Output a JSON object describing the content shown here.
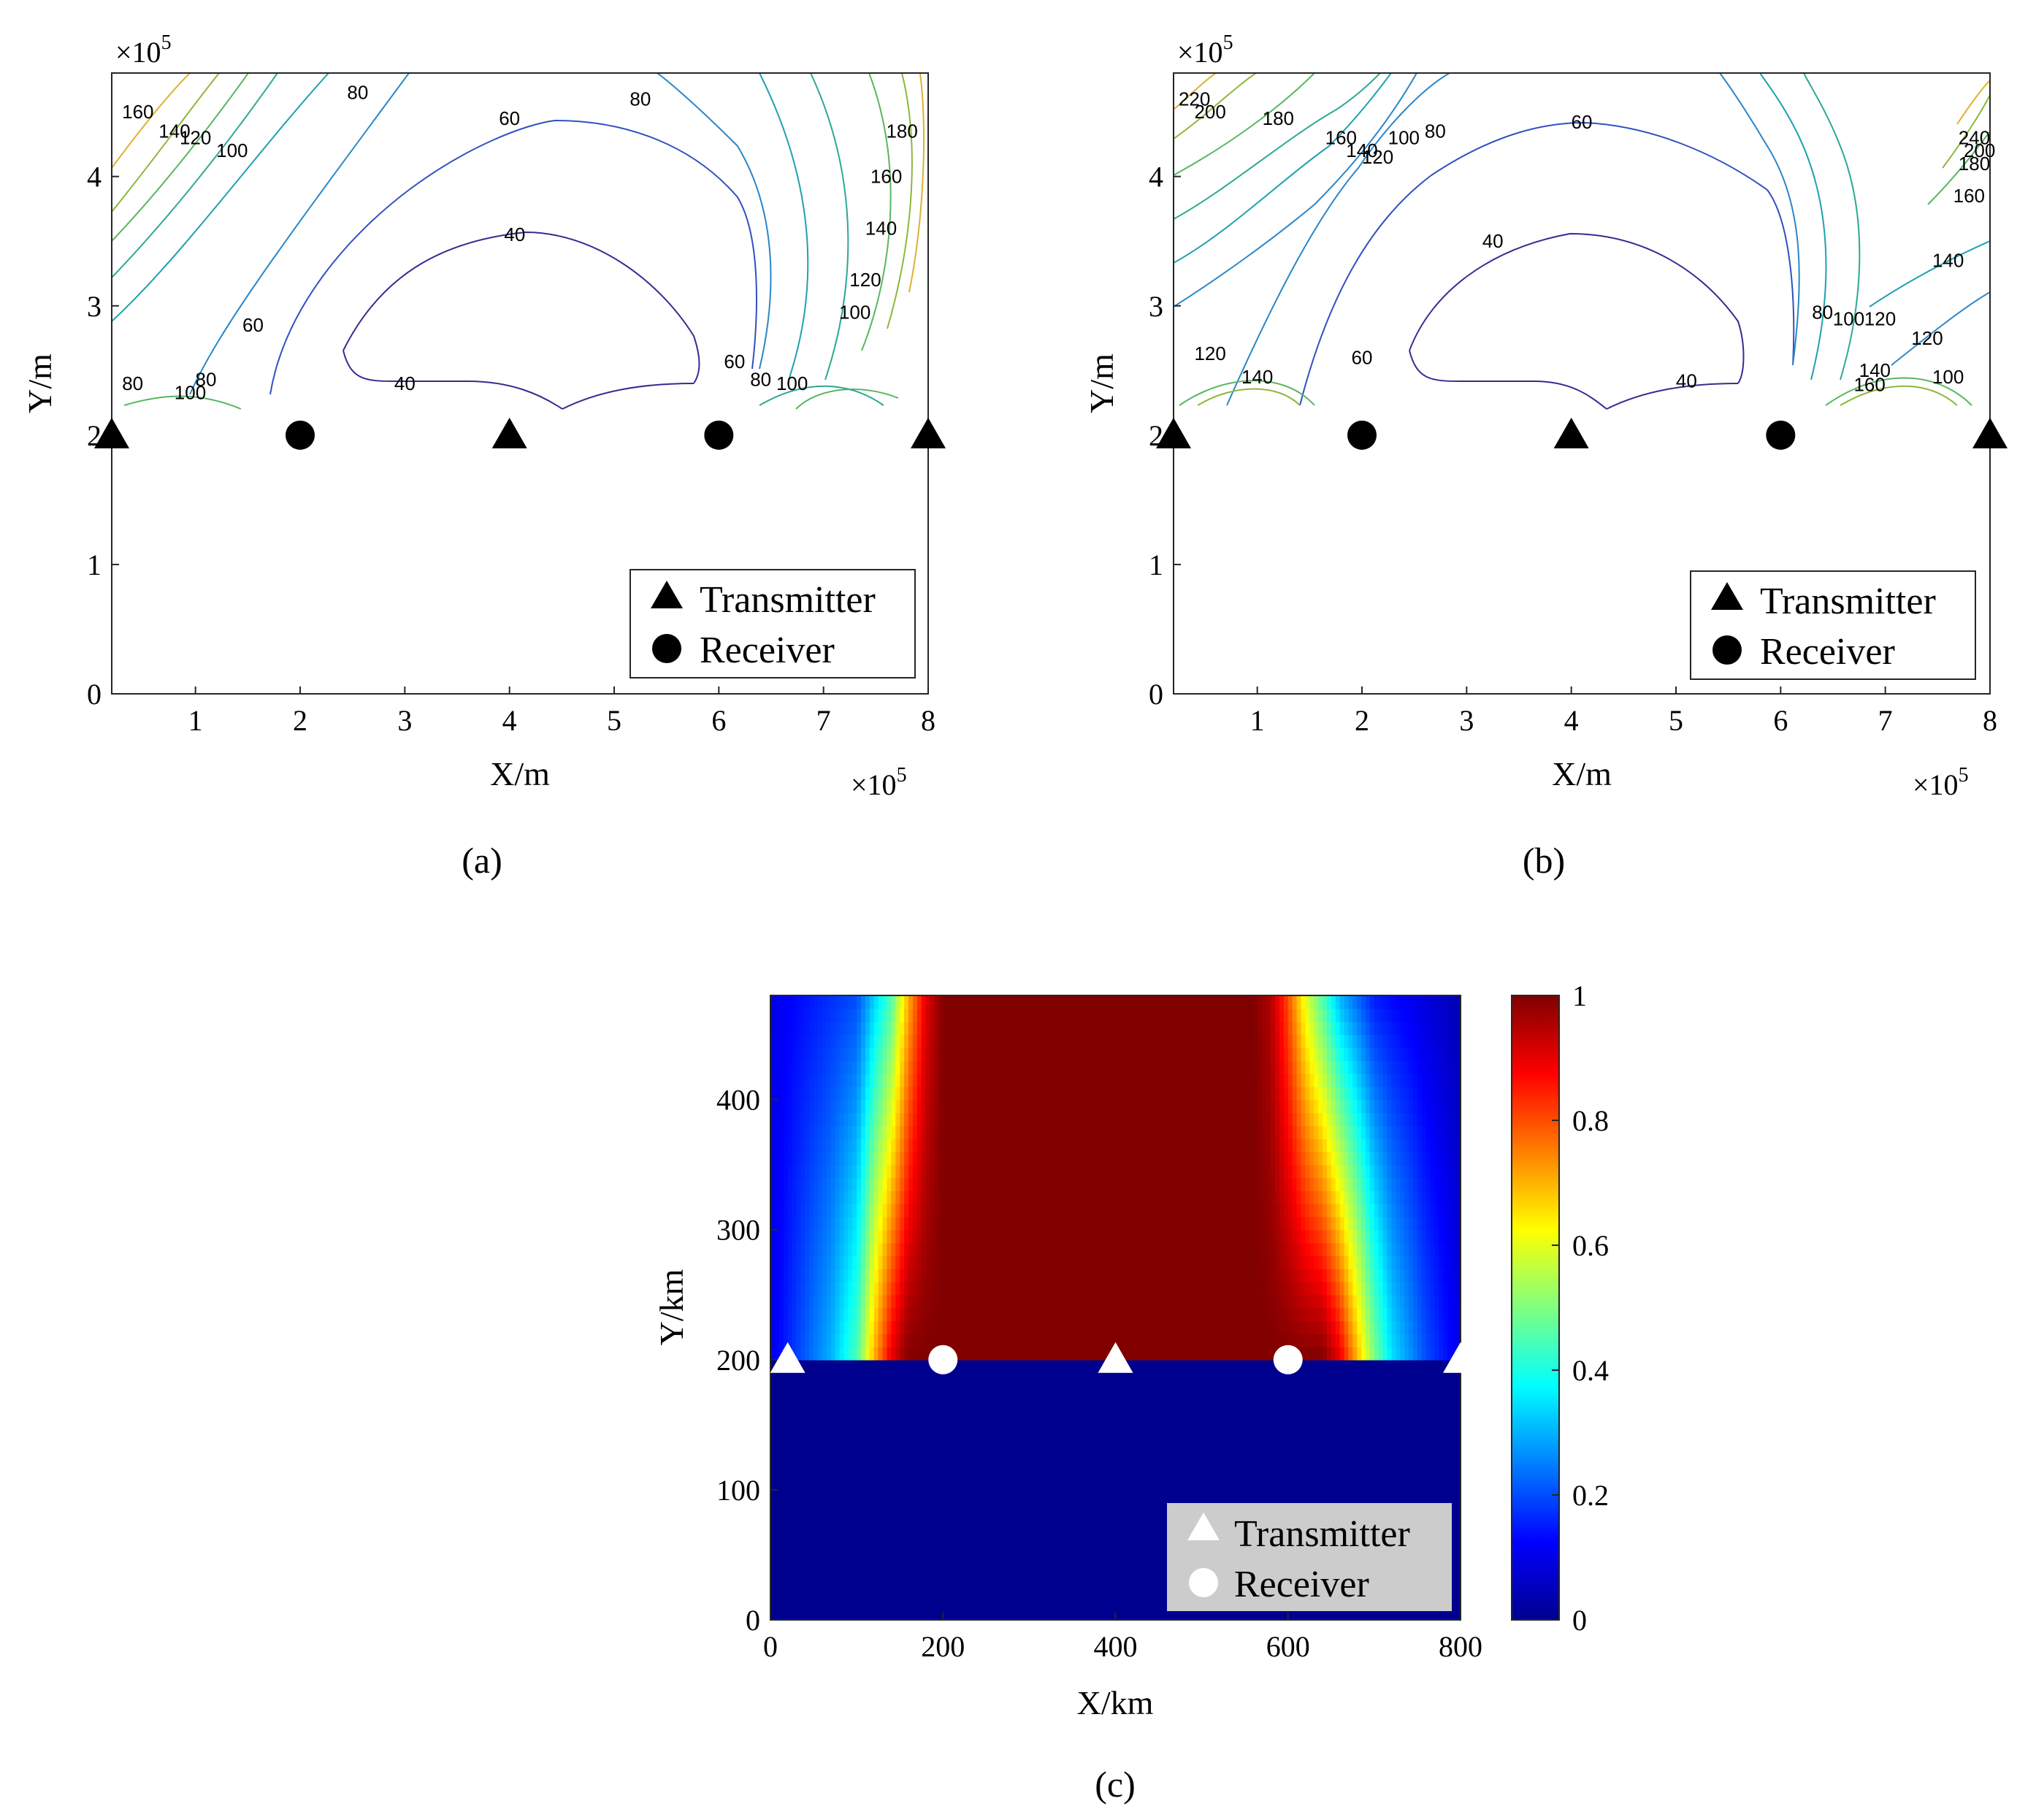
{
  "panels": [
    {
      "label": "(a)",
      "xlabel": "X/m",
      "ylabel": "Y/m",
      "x_exponent": "×10",
      "y_exponent": "×10",
      "exponent_power": "5",
      "xticks": [
        "1",
        "2",
        "3",
        "4",
        "5",
        "6",
        "7",
        "8"
      ],
      "yticks": [
        "0",
        "1",
        "2",
        "3",
        "4"
      ],
      "legend": [
        "Transmitter",
        "Receiver"
      ]
    },
    {
      "label": "(b)",
      "xlabel": "X/m",
      "ylabel": "Y/m",
      "x_exponent": "×10",
      "y_exponent": "×10",
      "exponent_power": "5",
      "xticks": [
        "1",
        "2",
        "3",
        "4",
        "5",
        "6",
        "7",
        "8"
      ],
      "yticks": [
        "0",
        "1",
        "2",
        "3",
        "4"
      ],
      "legend": [
        "Transmitter",
        "Receiver"
      ]
    },
    {
      "label": "(c)",
      "xlabel": "X/km",
      "ylabel": "Y/km",
      "xticks": [
        "0",
        "200",
        "400",
        "600",
        "800"
      ],
      "yticks": [
        "0",
        "100",
        "200",
        "300",
        "400"
      ],
      "colorbar_ticks": [
        "0",
        "0.2",
        "0.4",
        "0.6",
        "0.8",
        "1"
      ],
      "legend": [
        "Transmitter",
        "Receiver"
      ]
    }
  ],
  "chart_data": [
    {
      "type": "contour",
      "panel": "a",
      "xlim": [
        20000,
        800000
      ],
      "ylim": [
        0,
        480000
      ],
      "contour_labels": [
        {
          "text": "160",
          "x": 45000,
          "y": 445000
        },
        {
          "text": "140",
          "x": 80000,
          "y": 430000
        },
        {
          "text": "120",
          "x": 100000,
          "y": 425000
        },
        {
          "text": "100",
          "x": 135000,
          "y": 415000
        },
        {
          "text": "80",
          "x": 255000,
          "y": 460000
        },
        {
          "text": "60",
          "x": 400000,
          "y": 440000
        },
        {
          "text": "80",
          "x": 525000,
          "y": 455000
        },
        {
          "text": "40",
          "x": 405000,
          "y": 350000
        },
        {
          "text": "60",
          "x": 155000,
          "y": 280000
        },
        {
          "text": "40",
          "x": 300000,
          "y": 235000
        },
        {
          "text": "80",
          "x": 110000,
          "y": 238000
        },
        {
          "text": "80",
          "x": 40000,
          "y": 235000
        },
        {
          "text": "100",
          "x": 95000,
          "y": 228000
        },
        {
          "text": "60",
          "x": 615000,
          "y": 252000
        },
        {
          "text": "80",
          "x": 640000,
          "y": 238000
        },
        {
          "text": "100",
          "x": 670000,
          "y": 235000
        },
        {
          "text": "180",
          "x": 775000,
          "y": 430000
        },
        {
          "text": "160",
          "x": 760000,
          "y": 395000
        },
        {
          "text": "140",
          "x": 755000,
          "y": 355000
        },
        {
          "text": "120",
          "x": 740000,
          "y": 315000
        },
        {
          "text": "100",
          "x": 730000,
          "y": 290000
        }
      ],
      "transmitters": [
        [
          20000,
          200000
        ],
        [
          400000,
          200000
        ],
        [
          800000,
          200000
        ]
      ],
      "receivers": [
        [
          200000,
          200000
        ],
        [
          600000,
          200000
        ]
      ]
    },
    {
      "type": "contour",
      "panel": "b",
      "xlim": [
        20000,
        800000
      ],
      "ylim": [
        0,
        480000
      ],
      "contour_labels": [
        {
          "text": "220",
          "x": 40000,
          "y": 455000
        },
        {
          "text": "200",
          "x": 55000,
          "y": 445000
        },
        {
          "text": "180",
          "x": 120000,
          "y": 440000
        },
        {
          "text": "160",
          "x": 180000,
          "y": 425000
        },
        {
          "text": "140",
          "x": 200000,
          "y": 415000
        },
        {
          "text": "120",
          "x": 215000,
          "y": 410000
        },
        {
          "text": "100",
          "x": 240000,
          "y": 425000
        },
        {
          "text": "80",
          "x": 270000,
          "y": 430000
        },
        {
          "text": "60",
          "x": 410000,
          "y": 437000
        },
        {
          "text": "40",
          "x": 325000,
          "y": 345000
        },
        {
          "text": "60",
          "x": 200000,
          "y": 255000
        },
        {
          "text": "40",
          "x": 510000,
          "y": 237000
        },
        {
          "text": "120",
          "x": 55000,
          "y": 258000
        },
        {
          "text": "140",
          "x": 100000,
          "y": 240000
        },
        {
          "text": "80",
          "x": 640000,
          "y": 290000
        },
        {
          "text": "100",
          "x": 665000,
          "y": 285000
        },
        {
          "text": "120",
          "x": 695000,
          "y": 285000
        },
        {
          "text": "140",
          "x": 690000,
          "y": 245000
        },
        {
          "text": "160",
          "x": 685000,
          "y": 234000
        },
        {
          "text": "100",
          "x": 760000,
          "y": 240000
        },
        {
          "text": "120",
          "x": 740000,
          "y": 270000
        },
        {
          "text": "140",
          "x": 760000,
          "y": 330000
        },
        {
          "text": "160",
          "x": 780000,
          "y": 380000
        },
        {
          "text": "180",
          "x": 785000,
          "y": 405000
        },
        {
          "text": "200",
          "x": 790000,
          "y": 415000
        },
        {
          "text": "240",
          "x": 785000,
          "y": 425000
        }
      ],
      "transmitters": [
        [
          20000,
          200000
        ],
        [
          400000,
          200000
        ],
        [
          800000,
          200000
        ]
      ],
      "receivers": [
        [
          200000,
          200000
        ],
        [
          600000,
          200000
        ]
      ]
    },
    {
      "type": "heatmap",
      "panel": "c",
      "xlim": [
        0,
        800
      ],
      "ylim": [
        0,
        480
      ],
      "clim": [
        0,
        1
      ],
      "colormap": "jet",
      "values_description_rows": [
        {
          "y": 480,
          "x": [
            0,
            100,
            140,
            160,
            180,
            200,
            230,
            260,
            560,
            580,
            600,
            620,
            640,
            660,
            700,
            800
          ],
          "v": [
            0.1,
            0.2,
            0.45,
            0.7,
            0.9,
            1,
            1,
            1,
            1,
            0.95,
            0.8,
            0.6,
            0.45,
            0.3,
            0.15,
            0.05
          ]
        },
        {
          "y": 200,
          "x": [
            0,
            70,
            100,
            120,
            140,
            160,
            640,
            660,
            680,
            700,
            720,
            760,
            800
          ],
          "v": [
            0.1,
            0.3,
            0.45,
            0.7,
            0.9,
            1,
            1,
            0.9,
            0.7,
            0.5,
            0.35,
            0.2,
            0.1
          ]
        }
      ],
      "below_y_value": 0,
      "transmitters": [
        [
          20,
          200
        ],
        [
          400,
          200
        ],
        [
          800,
          200
        ]
      ],
      "receivers": [
        [
          200,
          200
        ],
        [
          600,
          200
        ]
      ]
    }
  ]
}
